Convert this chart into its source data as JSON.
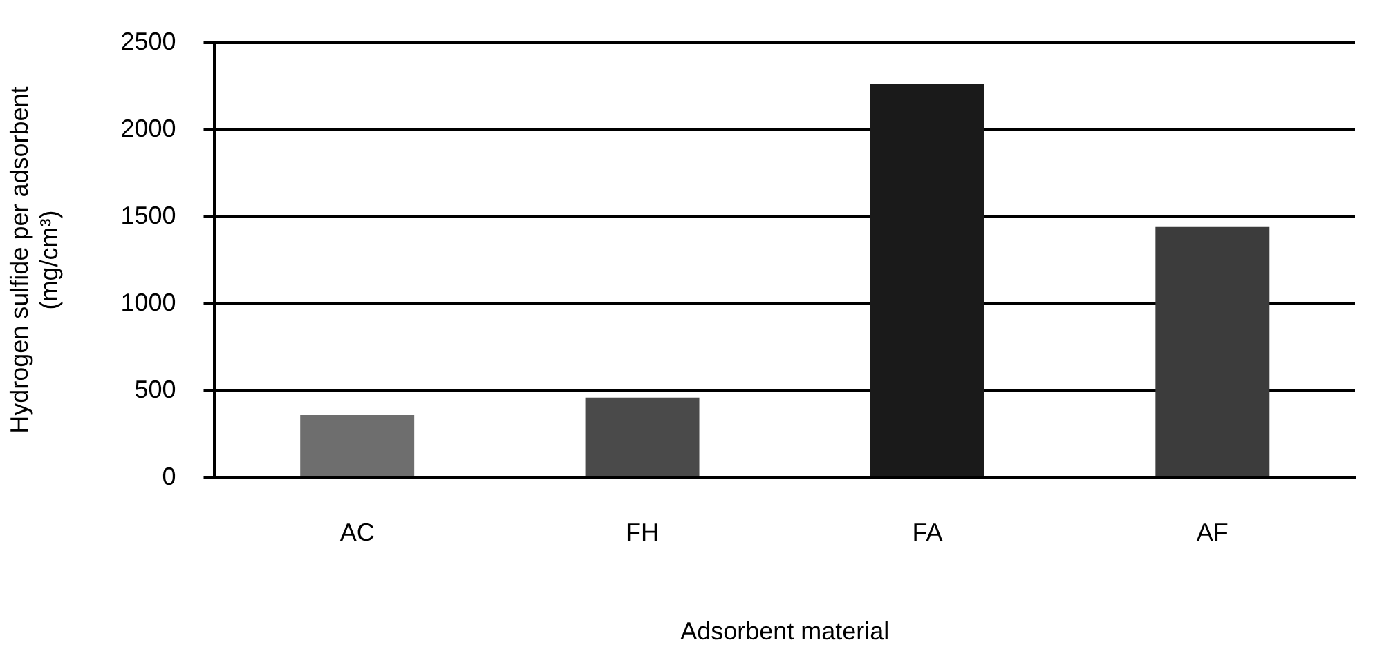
{
  "chart_data": {
    "type": "bar",
    "xlabel": "Adsorbent material",
    "ylabel": "Hydrogen sulfide per adsorbent\n(mg/cm³)",
    "categories": [
      "AC",
      "FH",
      "FA",
      "AF"
    ],
    "values": [
      360,
      460,
      2260,
      1440
    ],
    "colors": [
      "#6e6e6e",
      "#4a4a4a",
      "#1a1a1a",
      "#3c3c3c"
    ],
    "ylim": [
      0,
      2500
    ],
    "yticks": [
      0,
      500,
      1000,
      1500,
      2000,
      2500
    ],
    "grid": "y",
    "legend": false
  }
}
